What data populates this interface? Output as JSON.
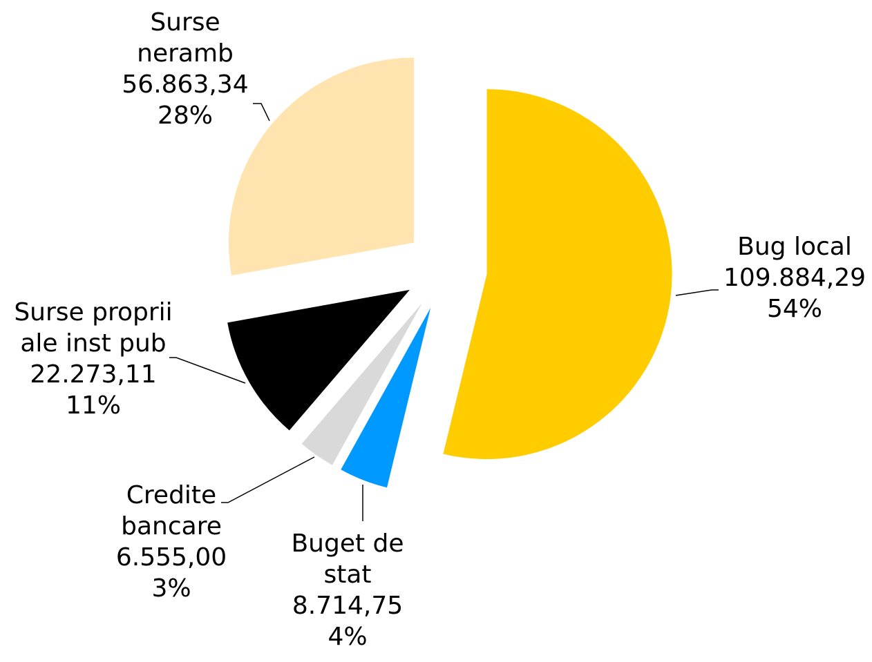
{
  "chart_data": {
    "type": "pie",
    "categories": [
      "Bug local",
      "Buget de stat",
      "Credite bancare",
      "Surse proprii ale inst pub",
      "Surse neramb"
    ],
    "values": [
      109884.29,
      8714.75,
      6555.0,
      22273.11,
      56863.34
    ],
    "value_labels": [
      "109.884,29",
      "8.714,75",
      "6.555,00",
      "22.273,11",
      "56.863,34"
    ],
    "percentages": [
      54,
      4,
      3,
      11,
      28
    ],
    "percentage_labels": [
      "54%",
      "4%",
      "3%",
      "11%",
      "28%"
    ],
    "colors": [
      "#FFCC00",
      "#0099FF",
      "#D9D9D9",
      "#000000",
      "#FFE4AF"
    ]
  }
}
